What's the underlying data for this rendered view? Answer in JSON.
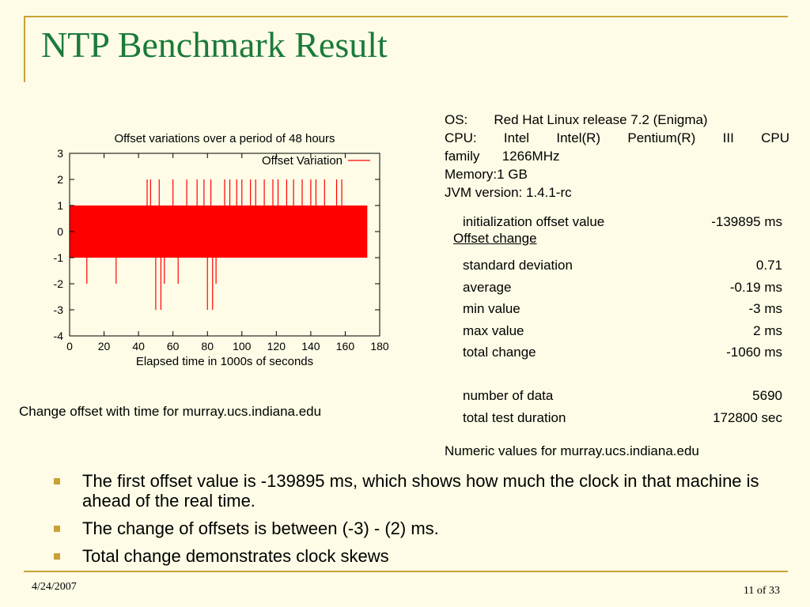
{
  "slide": {
    "title": "NTP Benchmark Result",
    "date": "4/24/2007",
    "page": "11 of 33"
  },
  "chart_caption": "Change offset with time for murray.ucs.indiana.edu",
  "chart_data": {
    "type": "line",
    "title": "Offset variations over a period of 48 hours",
    "xlabel": "Elapsed time in 1000s of seconds",
    "ylabel": "",
    "xlim": [
      0,
      180
    ],
    "ylim": [
      -4,
      3
    ],
    "xticks": [
      0,
      20,
      40,
      60,
      80,
      100,
      120,
      140,
      160,
      180
    ],
    "yticks": [
      3,
      2,
      1,
      0,
      -1,
      -2,
      -3,
      -4
    ],
    "legend_position": "top-right",
    "series": [
      {
        "name": "Offset Variation",
        "color": "#ff0000",
        "x_range": [
          0,
          172.8
        ],
        "typical_range": [
          -1,
          1
        ],
        "spikes_low": [
          [
            10,
            -2
          ],
          [
            27,
            -2
          ],
          [
            50,
            -3
          ],
          [
            53,
            -3
          ],
          [
            55,
            -2
          ],
          [
            63,
            -2
          ],
          [
            80,
            -3
          ],
          [
            83,
            -3
          ],
          [
            85,
            -2
          ]
        ],
        "spikes_high": [
          [
            45,
            2
          ],
          [
            47,
            2
          ],
          [
            52,
            2
          ],
          [
            60,
            2
          ],
          [
            68,
            2
          ],
          [
            74,
            2
          ],
          [
            78,
            2
          ],
          [
            82,
            2
          ],
          [
            90,
            2
          ],
          [
            93,
            2
          ],
          [
            97,
            2
          ],
          [
            100,
            2
          ],
          [
            105,
            2
          ],
          [
            108,
            2
          ],
          [
            113,
            2
          ],
          [
            118,
            2
          ],
          [
            121,
            2
          ],
          [
            126,
            2
          ],
          [
            130,
            2
          ],
          [
            135,
            2
          ],
          [
            140,
            2
          ],
          [
            143,
            2
          ],
          [
            148,
            2
          ],
          [
            155,
            2
          ],
          [
            158,
            2
          ]
        ]
      }
    ]
  },
  "system_info": {
    "os": "OS:       Red Hat Linux release 7.2 (Enigma)",
    "cpu": "CPU: Intel Intel(R) Pentium(R) III CPU",
    "cpu_cont": "family      1266MHz",
    "memory": "Memory:1 GB",
    "jvm": "JVM version: 1.4.1-rc"
  },
  "stats": {
    "heading": "Offset change",
    "rows": [
      {
        "label": "initialization offset value",
        "value": "-139895 ms"
      },
      {
        "label": "",
        "value": ""
      },
      {
        "label": "standard deviation",
        "value": "0.71"
      },
      {
        "label": "average",
        "value": "-0.19 ms"
      },
      {
        "label": "min value",
        "value": "-3 ms"
      },
      {
        "label": "max value",
        "value": "2 ms"
      },
      {
        "label": "total change",
        "value": "-1060 ms"
      },
      {
        "label": "",
        "value": ""
      },
      {
        "label": "number of data",
        "value": "5690"
      },
      {
        "label": "total test duration",
        "value": "172800 sec"
      }
    ],
    "caption": "Numeric values for murray.ucs.indiana.edu"
  },
  "bullets": [
    "The first offset value is -139895 ms, which shows how much the clock in that machine is ahead of the real time.",
    "The change of offsets is between (-3) - (2) ms.",
    "Total change demonstrates clock skews"
  ]
}
